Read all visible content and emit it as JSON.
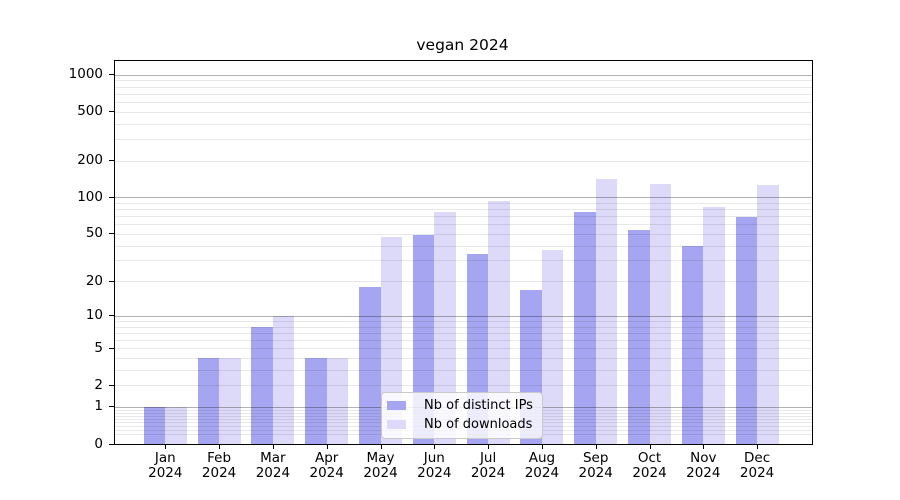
{
  "chart_data": {
    "type": "bar",
    "title": "vegan 2024",
    "categories": [
      "Jan 2024",
      "Feb 2024",
      "Mar 2024",
      "Apr 2024",
      "May 2024",
      "Jun 2024",
      "Jul 2024",
      "Aug 2024",
      "Sep 2024",
      "Oct 2024",
      "Nov 2024",
      "Dec 2024"
    ],
    "series": [
      {
        "name": "Nb of distinct IPs",
        "color": "#a5a5f1",
        "values": [
          1,
          4,
          8,
          4,
          18,
          49,
          34,
          17,
          76,
          54,
          40,
          69
        ]
      },
      {
        "name": "Nb of downloads",
        "color": "#dcdaf8",
        "values": [
          1,
          4,
          10,
          4,
          47,
          76,
          94,
          37,
          140,
          128,
          84,
          125
        ]
      }
    ],
    "y_axis": {
      "scale": "log1p",
      "ticks": [
        0,
        1,
        2,
        5,
        10,
        20,
        50,
        100,
        200,
        500,
        1000
      ],
      "range": [
        0,
        1300
      ]
    },
    "xlabel": "",
    "ylabel": "",
    "grid": "on",
    "legend_position": "lower-center-inside"
  }
}
